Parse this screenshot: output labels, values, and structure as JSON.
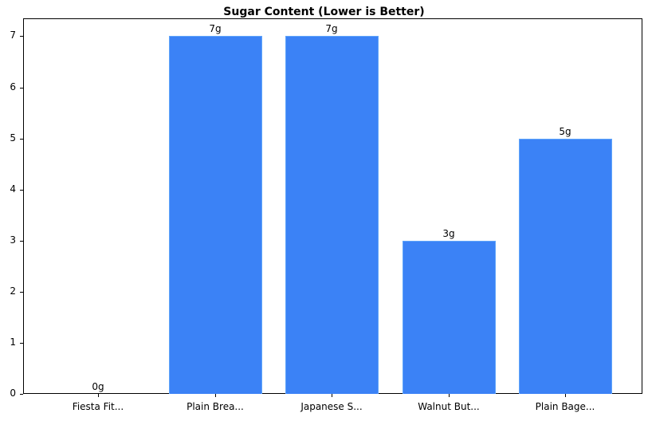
{
  "chart_data": {
    "type": "bar",
    "title": "Sugar Content (Lower is Better)",
    "xlabel": "",
    "ylabel": "",
    "categories": [
      "Fiesta Fit...",
      "Plain Brea...",
      "Japanese S...",
      "Walnut But...",
      "Plain Bage..."
    ],
    "values": [
      0,
      7,
      7,
      3,
      5
    ],
    "value_labels": [
      "0g",
      "7g",
      "7g",
      "3g",
      "5g"
    ],
    "ylim": [
      0,
      7.35
    ],
    "yticks": [
      0,
      1,
      2,
      3,
      4,
      5,
      6,
      7
    ],
    "grid": false,
    "legend": null,
    "bar_color": "#3b82f6"
  }
}
